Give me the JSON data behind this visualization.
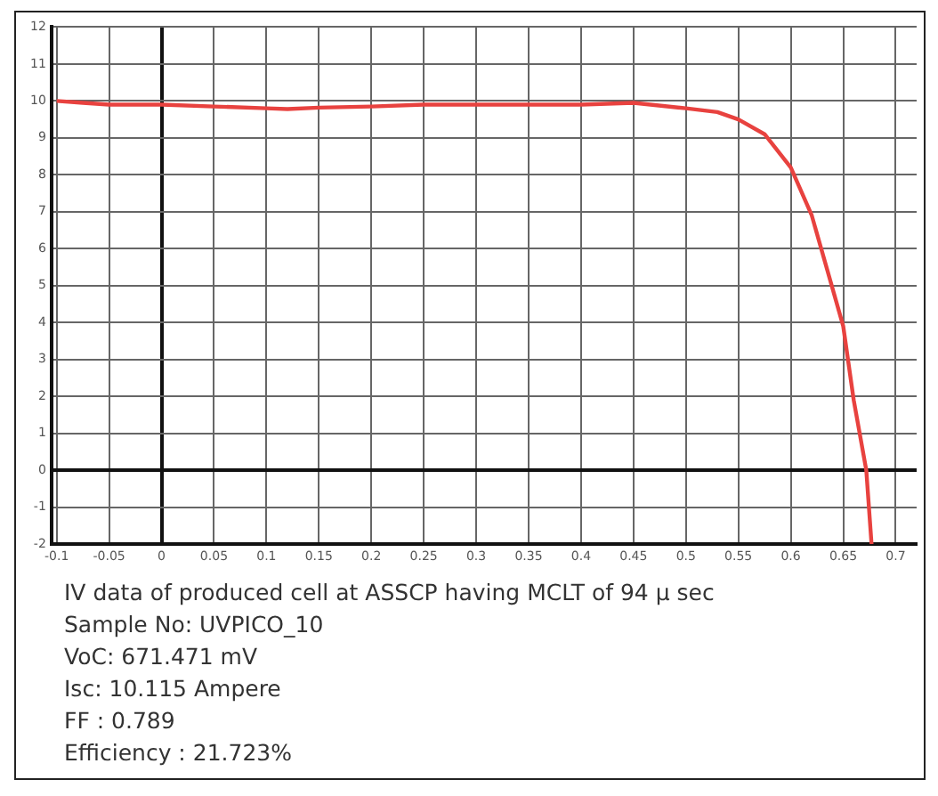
{
  "chart_data": {
    "type": "line",
    "x": [
      -0.1,
      -0.075,
      -0.05,
      0,
      0.05,
      0.1,
      0.12,
      0.15,
      0.2,
      0.25,
      0.3,
      0.35,
      0.4,
      0.45,
      0.5,
      0.53,
      0.55,
      0.575,
      0.6,
      0.62,
      0.635,
      0.65,
      0.66,
      0.672,
      0.677
    ],
    "series": [
      {
        "color": "#e8423f",
        "values": [
          10.0,
          9.95,
          9.9,
          9.9,
          9.85,
          9.8,
          9.78,
          9.82,
          9.85,
          9.9,
          9.9,
          9.9,
          9.9,
          9.95,
          9.8,
          9.7,
          9.5,
          9.1,
          8.2,
          6.9,
          5.4,
          3.9,
          1.9,
          0,
          -2
        ]
      }
    ],
    "xlim": [
      -0.105,
      0.72
    ],
    "ylim": [
      -2,
      12
    ],
    "xticks": [
      -0.1,
      -0.05,
      0,
      0.05,
      0.1,
      0.15,
      0.2,
      0.25,
      0.3,
      0.35,
      0.4,
      0.45,
      0.5,
      0.55,
      0.6,
      0.65,
      0.7
    ],
    "yticks": [
      -2,
      -1,
      0,
      1,
      2,
      3,
      4,
      5,
      6,
      7,
      8,
      9,
      10,
      11,
      12
    ],
    "grid": true,
    "marker": "none",
    "line_style": "solid",
    "annotations": [
      "IV data of produced cell at ASSCP having MCLT of 94 µ sec",
      "Sample No: UVPICO_10",
      "VoC: 671.471 mV",
      "Isc: 10.115 Ampere",
      "FF : 0.789",
      "Efficiency : 21.723%"
    ]
  }
}
